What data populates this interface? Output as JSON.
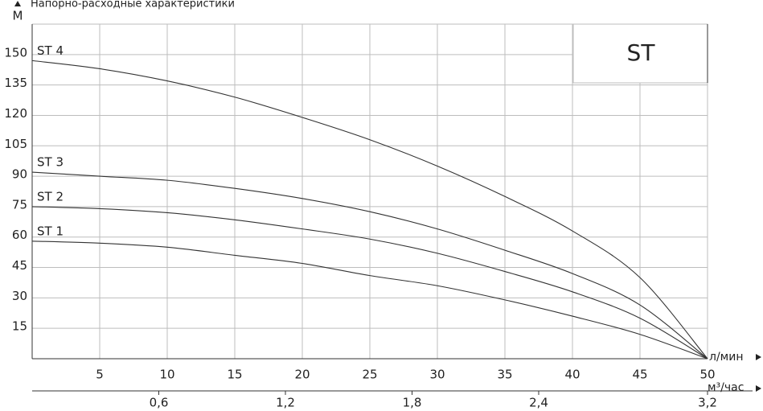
{
  "chart_data": {
    "type": "line",
    "title": "Напорно-расходные характеристики",
    "y_label": "М",
    "x_label": "л/мин",
    "x2_label": "м³/час",
    "badge": "ST",
    "x": [
      0,
      5,
      10,
      15,
      20,
      25,
      30,
      35,
      40,
      45,
      50
    ],
    "series": [
      {
        "name": "ST 4",
        "color": "#333333",
        "values": [
          147,
          143,
          137,
          129,
          119,
          108,
          95,
          80,
          63,
          40,
          0
        ]
      },
      {
        "name": "ST 3",
        "color": "#333333",
        "values": [
          92,
          90,
          88,
          84,
          79,
          72.5,
          64,
          53.5,
          42,
          26.5,
          0
        ]
      },
      {
        "name": "ST 2",
        "color": "#333333",
        "values": [
          75,
          74,
          72,
          68.5,
          64,
          59,
          52,
          43,
          33,
          20,
          0
        ]
      },
      {
        "name": "ST 1",
        "color": "#333333",
        "values": [
          58,
          57,
          55,
          51,
          47,
          41,
          36,
          29,
          21,
          12,
          0
        ]
      }
    ],
    "xlim": [
      0,
      50
    ],
    "xticks": [
      5,
      10,
      15,
      20,
      25,
      30,
      35,
      40,
      45,
      50
    ],
    "x2lim": [
      0,
      3.2
    ],
    "x2ticks": [
      {
        "value": 0.6,
        "label": "0,6"
      },
      {
        "value": 1.2,
        "label": "1,2"
      },
      {
        "value": 1.8,
        "label": "1,8"
      },
      {
        "value": 2.4,
        "label": "2,4"
      },
      {
        "value": 3.2,
        "label": "3,2"
      }
    ],
    "ylim": [
      0,
      165
    ],
    "yticks": [
      15,
      30,
      45,
      60,
      75,
      90,
      105,
      120,
      135,
      150
    ],
    "grid": true
  }
}
